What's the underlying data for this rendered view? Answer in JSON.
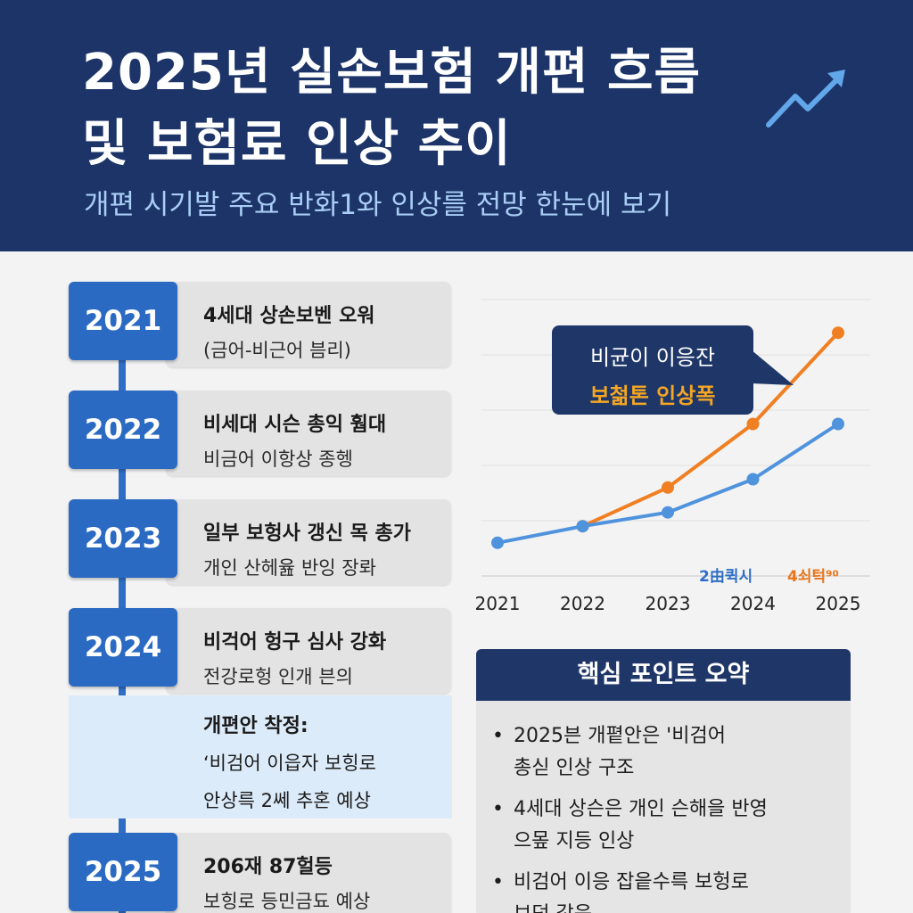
{
  "header": {
    "title_line1": "2025년 실손보험 개편 흐름",
    "title_line2": "및 보험료 인상 추이",
    "subtitle": "개편 시기발 주요 반화1와 인상를 전망 한눈에 보기"
  },
  "timeline": [
    {
      "year": "2021",
      "title": "4세대 상손보벤 오워",
      "desc": "(금어-비근어 븜리)"
    },
    {
      "year": "2022",
      "title": "비세대 시슨 총익 훰대",
      "desc": "비금어 이항상 종헹"
    },
    {
      "year": "2023",
      "title": "일부 보헝사 갱신 목 총가",
      "desc": "개인 산헤윮 반잉 장롸"
    },
    {
      "year": "2024",
      "title": "비걱어 헝구 심사 강화",
      "desc": "전강로헝 인개 븐의"
    },
    {
      "year": "2025",
      "title": "206재 87헐등",
      "desc": "보힝로 등민금됴 예상"
    }
  ],
  "highlight": {
    "title": "개편안 착정:",
    "line1": "‘비검어 이읍자 보힝로",
    "line2": "안상륵 2쎄 추혼 예상"
  },
  "callout": {
    "line1": "비균이 이응잔",
    "line2": "보첢톤 인상폭"
  },
  "chart_labels": {
    "series_a_tag": "2由퀵시",
    "series_b_tag": "4쇠턱⁹⁰"
  },
  "chart_data": {
    "type": "line",
    "x": [
      "2021",
      "2022",
      "2023",
      "2024",
      "2025"
    ],
    "ylim": [
      0,
      100
    ],
    "grid": true,
    "series": [
      {
        "color": "#f07f22",
        "values": [
          null,
          18,
          32,
          55,
          88
        ]
      },
      {
        "color": "#4f93dd",
        "values": [
          12,
          18,
          23,
          35,
          55
        ]
      }
    ]
  },
  "summary": {
    "heading": "핵심 포인트 오약",
    "items": [
      {
        "line1": "2025븐 개폍안은 '비검어",
        "line2": "총싣 인상 구조"
      },
      {
        "line1": "4세대 상슨은 개인 슨해을 반영",
        "line2": "으뫂 지등 인상"
      },
      {
        "line1": "비검어 이응 잡읕수륵 보헝로",
        "line2": "브덕 갛응"
      }
    ]
  },
  "colors": {
    "header_bg": "#1c3468",
    "accent_blue": "#2b6ac2",
    "orange": "#f07f22",
    "light_blue": "#4f93dd"
  },
  "icons": [
    "trend-arrow-icon",
    "bullet-dot-icon"
  ]
}
